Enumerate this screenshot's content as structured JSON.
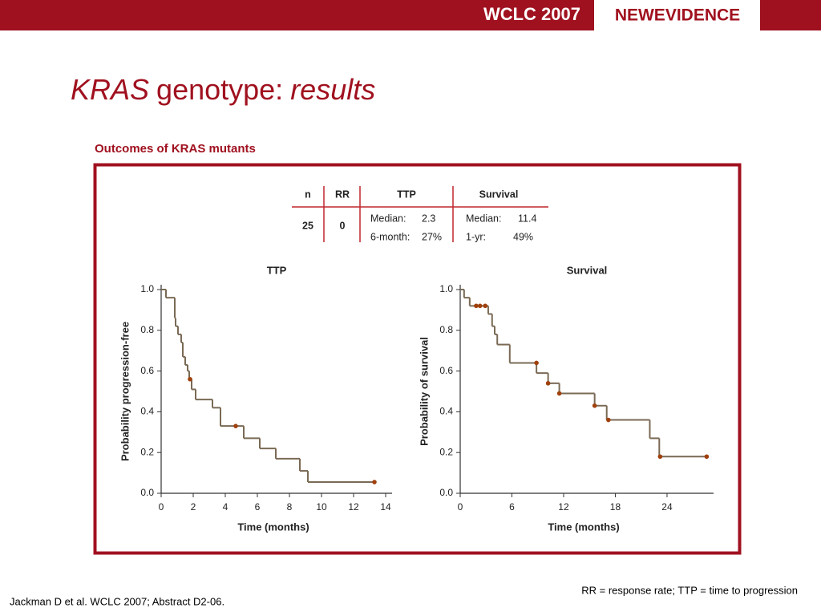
{
  "header": {
    "conference": "WCLC 2007",
    "logo": "NEWEVIDENCE"
  },
  "title": {
    "gene": "KRAS",
    "middle": "genotype:",
    "end": "results"
  },
  "figure_title": "Outcomes of KRAS mutants",
  "table": {
    "header": [
      "n",
      "RR",
      "TTP",
      "Survival"
    ],
    "row": {
      "n": "25",
      "rr": "0",
      "ttp": [
        [
          "Median:",
          "2.3"
        ],
        [
          "6-month:",
          "27%"
        ]
      ],
      "survival": [
        [
          "Median:",
          "11.4"
        ],
        [
          "1-yr:",
          "49%"
        ]
      ]
    }
  },
  "chart_data": [
    {
      "type": "step",
      "title": "TTP",
      "x_label": "Time (months)",
      "y_label": "Probability progression-free",
      "xlim": [
        0,
        14.4
      ],
      "xticks": [
        0,
        2,
        4,
        6,
        8,
        10,
        12,
        14
      ],
      "ylim": [
        0,
        1
      ],
      "yticks": [
        {
          "value": 0,
          "label": "0.0"
        },
        0.2,
        0.4,
        0.6,
        0.8,
        {
          "value": 1,
          "label": "1.0"
        }
      ],
      "series": [
        {
          "color": "#7a6a55",
          "x": [
            0,
            0.3,
            0.85,
            0.9,
            1.05,
            1.25,
            1.35,
            1.5,
            1.65,
            1.75,
            1.9,
            2.15,
            3.2,
            3.7,
            5.15,
            6.15,
            7.15,
            8.65,
            9.15,
            13.3
          ],
          "values": [
            1,
            0.96,
            0.86,
            0.82,
            0.78,
            0.74,
            0.67,
            0.63,
            0.6,
            0.56,
            0.51,
            0.46,
            0.42,
            0.33,
            0.27,
            0.22,
            0.17,
            0.11,
            0.055,
            0.055
          ]
        }
      ],
      "censored": {
        "color": "#a0410d",
        "x": [
          1.8,
          4.65,
          13.3
        ],
        "values": [
          0.56,
          0.33,
          0.055
        ]
      }
    },
    {
      "type": "step",
      "title": "Survival",
      "x_label": "Time (months)",
      "y_label": "Probability of survival",
      "xlim": [
        0,
        29.4
      ],
      "xticks": [
        0,
        6,
        12,
        18,
        24
      ],
      "ylim": [
        0,
        1
      ],
      "yticks": [
        {
          "value": 0,
          "label": "0.0"
        },
        0.2,
        0.4,
        0.6,
        0.8,
        {
          "value": 1,
          "label": "1.0"
        }
      ],
      "series": [
        {
          "color": "#7a6a55",
          "x": [
            0,
            0.45,
            1.1,
            3.25,
            3.7,
            4.0,
            4.3,
            5.75,
            8.85,
            10.2,
            11.5,
            15.6,
            17.0,
            22.0,
            23.1,
            28.6
          ],
          "values": [
            1,
            0.96,
            0.92,
            0.88,
            0.82,
            0.78,
            0.73,
            0.64,
            0.59,
            0.54,
            0.49,
            0.43,
            0.36,
            0.27,
            0.18,
            0.18
          ]
        }
      ],
      "censored": {
        "color": "#a0410d",
        "x": [
          1.85,
          2.3,
          2.9,
          8.85,
          10.2,
          11.5,
          15.6,
          17.2,
          23.2,
          28.6
        ],
        "values": [
          0.92,
          0.92,
          0.92,
          0.64,
          0.54,
          0.49,
          0.43,
          0.36,
          0.18,
          0.18
        ]
      }
    }
  ],
  "footer": {
    "left": "Jackman D et al. WCLC 2007; Abstract D2-06.",
    "right": "RR = response rate; TTP = time to progression"
  }
}
